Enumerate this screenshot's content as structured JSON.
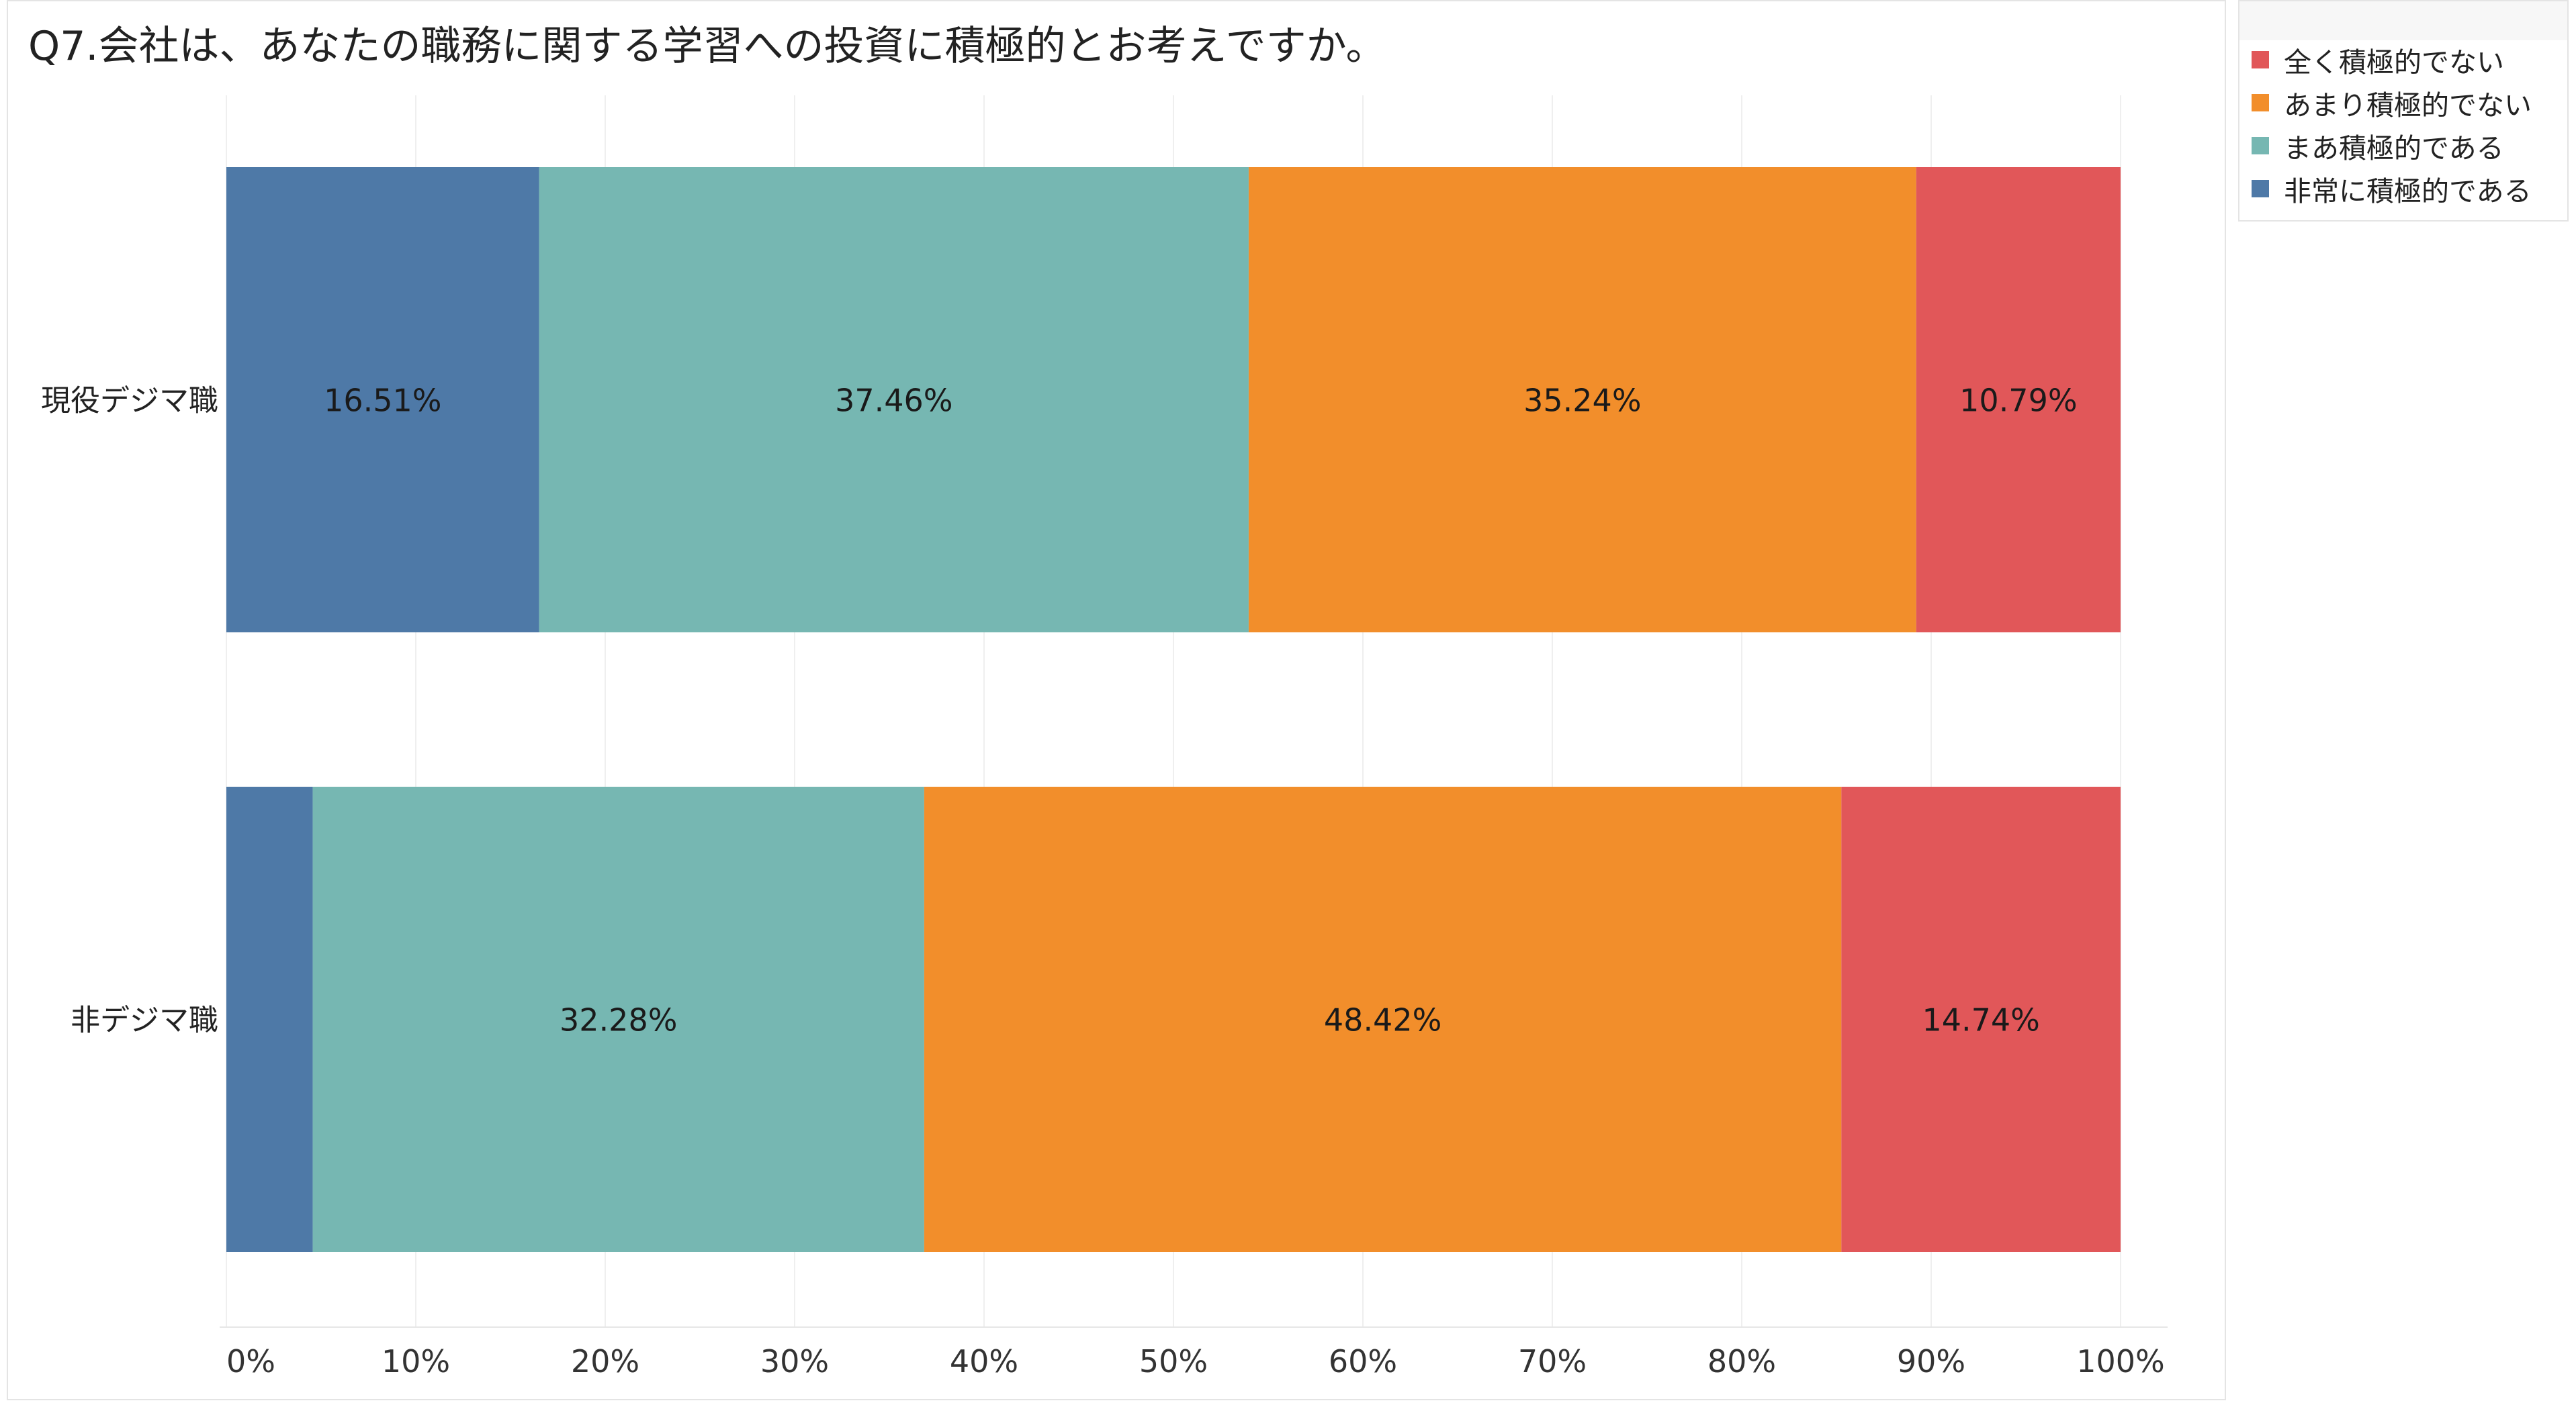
{
  "chart_data": {
    "type": "bar",
    "orientation": "horizontal",
    "stacked": "percent",
    "title": "Q7.会社は、あなたの職務に関する学習への投資に積極的とお考えですか。",
    "categories": [
      "現役デジマ職",
      "非デジマ職"
    ],
    "series": [
      {
        "name": "非常に積極的である",
        "color": "#4e79a7",
        "values": [
          16.51,
          4.56
        ],
        "labels": [
          "16.51%",
          ""
        ]
      },
      {
        "name": "まあ積極的である",
        "color": "#76b7b2",
        "values": [
          37.46,
          32.28
        ],
        "labels": [
          "37.46%",
          "32.28%"
        ]
      },
      {
        "name": "あまり積極的でない",
        "color": "#f28e2b",
        "values": [
          35.24,
          48.42
        ],
        "labels": [
          "35.24%",
          "48.42%"
        ]
      },
      {
        "name": "全く積極的でない",
        "color": "#e15759",
        "values": [
          10.79,
          14.74
        ],
        "labels": [
          "10.79%",
          "14.74%"
        ]
      }
    ],
    "xlim": [
      0,
      100
    ],
    "xticks": [
      "0%",
      "10%",
      "20%",
      "30%",
      "40%",
      "50%",
      "60%",
      "70%",
      "80%",
      "90%",
      "100%"
    ],
    "grid": true,
    "legend_position": "right",
    "legend_order": [
      "全く積極的でない",
      "あまり積極的でない",
      "まあ積極的である",
      "非常に積極的である"
    ]
  }
}
